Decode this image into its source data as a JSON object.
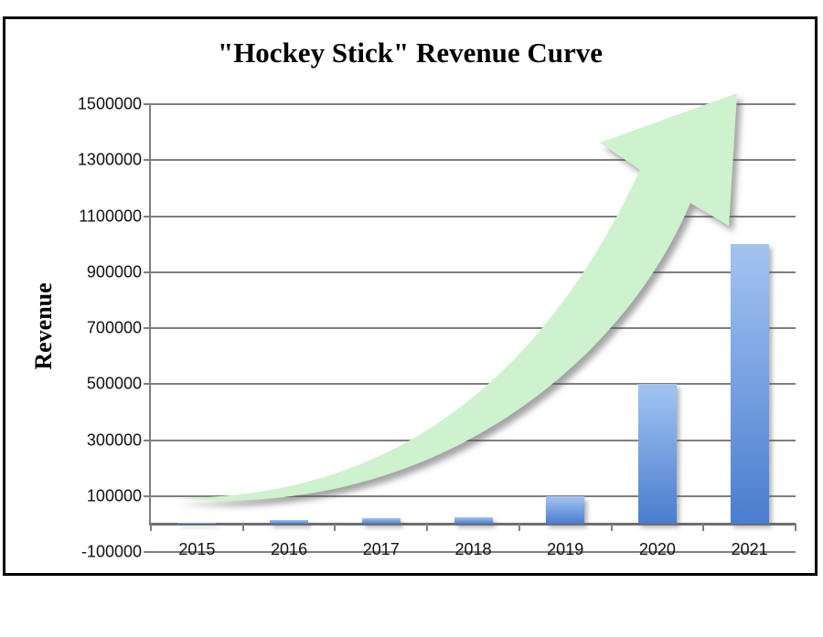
{
  "chart_data": {
    "type": "bar",
    "title": "\"Hockey Stick\" Revenue Curve",
    "ylabel": "Revenue",
    "xlabel": "",
    "categories": [
      "2015",
      "2016",
      "2017",
      "2018",
      "2019",
      "2020",
      "2021"
    ],
    "values": [
      1000,
      15000,
      20000,
      25000,
      100000,
      500000,
      1000000
    ],
    "ylim": [
      -100000,
      1500000
    ],
    "ytick_step": 200000,
    "ytick_labels": [
      "-100000",
      "100000",
      "300000",
      "500000",
      "700000",
      "900000",
      "1100000",
      "1300000",
      "1500000"
    ],
    "grid": true,
    "legend": false,
    "annotation": "growth-arrow",
    "colors": {
      "bar_gradient_top": "#a3c4f1",
      "bar_gradient_bottom": "#4a7dd0",
      "arrow_fill": "#cdf2cd",
      "gridline": "#7f7f7f",
      "text": "#111111",
      "frame_border": "#000000"
    }
  }
}
